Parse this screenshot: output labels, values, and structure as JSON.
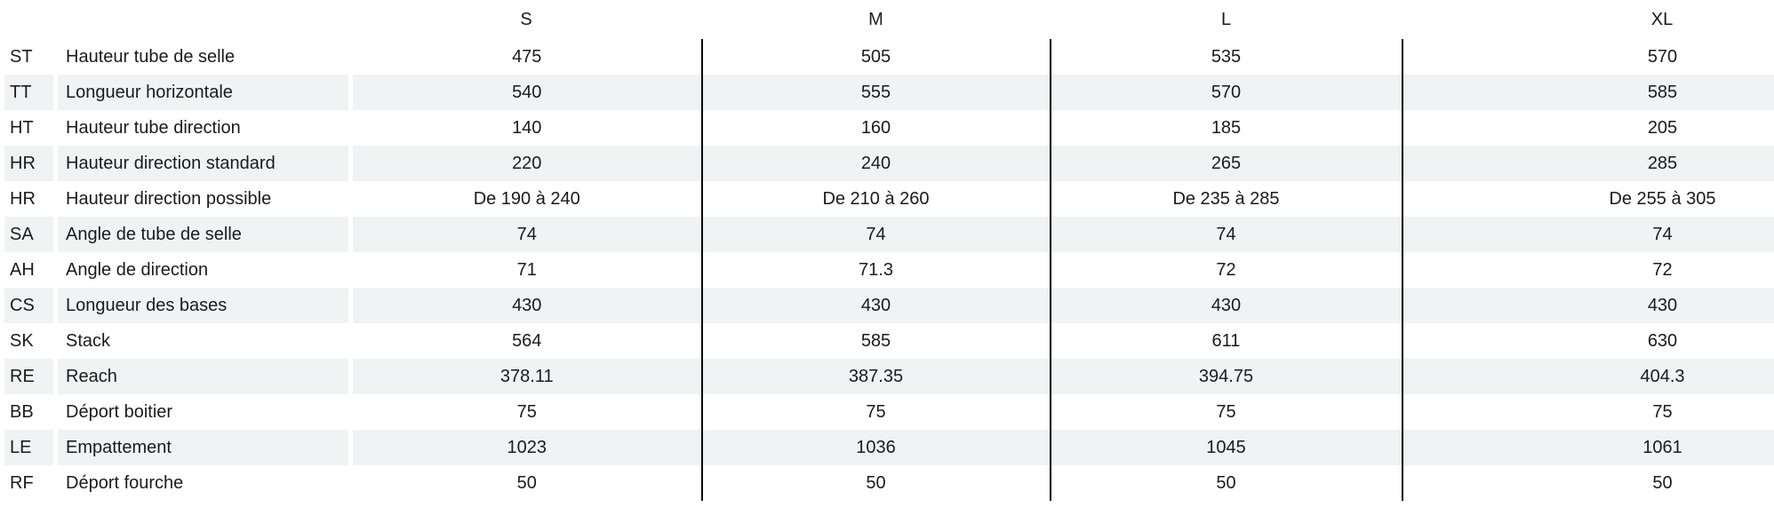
{
  "chart_data": {
    "type": "table",
    "title": "",
    "size_headers": [
      "S",
      "M",
      "L",
      "XL"
    ],
    "rows": [
      {
        "code": "ST",
        "label": "Hauteur tube de selle",
        "values": [
          "475",
          "505",
          "535",
          "570"
        ]
      },
      {
        "code": "TT",
        "label": "Longueur horizontale",
        "values": [
          "540",
          "555",
          "570",
          "585"
        ]
      },
      {
        "code": "HT",
        "label": "Hauteur tube direction",
        "values": [
          "140",
          "160",
          "185",
          "205"
        ]
      },
      {
        "code": "HR",
        "label": "Hauteur direction standard",
        "values": [
          "220",
          "240",
          "265",
          "285"
        ]
      },
      {
        "code": "HR",
        "label": "Hauteur direction possible",
        "values": [
          "De 190 à 240",
          "De 210 à 260",
          "De 235 à 285",
          "De 255 à 305"
        ]
      },
      {
        "code": "SA",
        "label": "Angle de tube de selle",
        "values": [
          "74",
          "74",
          "74",
          "74"
        ]
      },
      {
        "code": "AH",
        "label": "Angle de direction",
        "values": [
          "71",
          "71.3",
          "72",
          "72"
        ]
      },
      {
        "code": "CS",
        "label": "Longueur des bases",
        "values": [
          "430",
          "430",
          "430",
          "430"
        ]
      },
      {
        "code": "SK",
        "label": "Stack",
        "values": [
          "564",
          "585",
          "611",
          "630"
        ]
      },
      {
        "code": "RE",
        "label": "Reach",
        "values": [
          "378.11",
          "387.35",
          "394.75",
          "404.3"
        ]
      },
      {
        "code": "BB",
        "label": "Déport boitier",
        "values": [
          "75",
          "75",
          "75",
          "75"
        ]
      },
      {
        "code": "LE",
        "label": "Empattement",
        "values": [
          "1023",
          "1036",
          "1045",
          "1061"
        ]
      },
      {
        "code": "RF",
        "label": "Déport fourche",
        "values": [
          "50",
          "50",
          "50",
          "50"
        ]
      }
    ],
    "layout": {
      "stripe_color": "#f0f3f4",
      "divider_color": "#000000",
      "text_color": "#1b1b1b",
      "background_color": "#ffffff",
      "legend": "off",
      "grid": "off"
    }
  }
}
